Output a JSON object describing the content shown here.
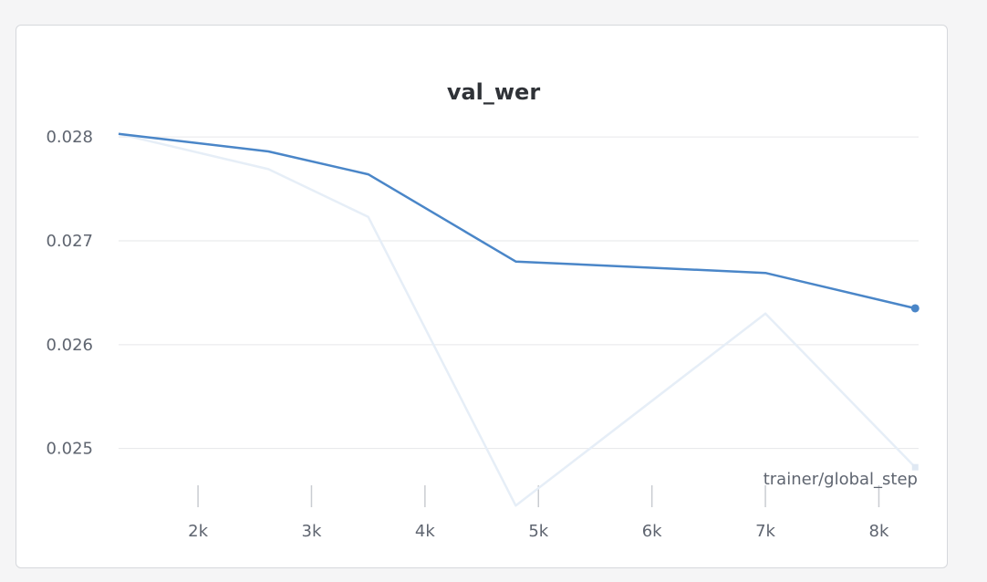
{
  "chart_data": {
    "type": "line",
    "title": "val_wer",
    "xlabel": "trainer/global_step",
    "ylabel": "",
    "xlim": [
      1300,
      8350
    ],
    "ylim": [
      0.0244,
      0.02815
    ],
    "x_ticks": [
      2000,
      3000,
      4000,
      5000,
      6000,
      7000,
      8000
    ],
    "x_tick_labels": [
      "2k",
      "3k",
      "4k",
      "5k",
      "6k",
      "7k",
      "8k"
    ],
    "y_ticks": [
      0.025,
      0.026,
      0.027,
      0.028
    ],
    "y_tick_labels": [
      "0.025",
      "0.026",
      "0.027",
      "0.028"
    ],
    "grid": "horizontal",
    "series": [
      {
        "kind": "smoothed",
        "color": "#4a86c8",
        "x": [
          1300,
          2620,
          3500,
          4800,
          7000,
          8320
        ],
        "y": [
          0.02803,
          0.02786,
          0.02764,
          0.0268,
          0.02669,
          0.02635
        ]
      },
      {
        "kind": "raw",
        "color": "#e6eef7",
        "x": [
          1300,
          2620,
          3500,
          4800,
          7000,
          8320
        ],
        "y": [
          0.02803,
          0.02769,
          0.02723,
          0.02445,
          0.0263,
          0.02482
        ]
      }
    ]
  }
}
